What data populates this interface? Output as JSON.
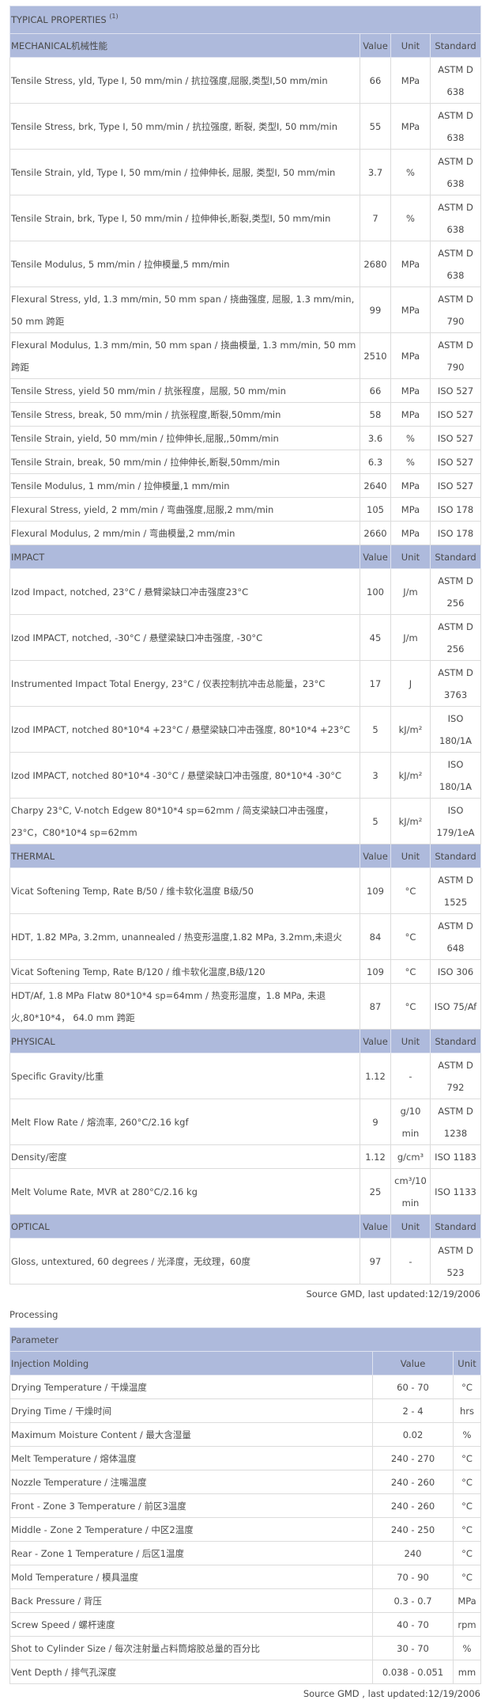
{
  "properties": {
    "title": "TYPICAL PROPERTIES",
    "title_note": "(1)",
    "columns": [
      "Value",
      "Unit",
      "Standard"
    ],
    "sections": [
      {
        "name": "MECHANICAL机械性能",
        "rows": [
          [
            "Tensile Stress, yld, Type I, 50 mm/min / 抗拉强度,屈服,类型I,50 mm/min",
            "66",
            "MPa",
            "ASTM D 638"
          ],
          [
            "Tensile Stress, brk, Type I, 50 mm/min / 抗拉强度, 断裂, 类型I, 50 mm/min",
            "55",
            "MPa",
            "ASTM D 638"
          ],
          [
            "Tensile Strain, yld, Type I, 50 mm/min / 拉伸伸长, 屈服, 类型I, 50 mm/min",
            "3.7",
            "%",
            "ASTM D 638"
          ],
          [
            "Tensile Strain, brk, Type I, 50 mm/min / 拉伸伸长,断裂,类型I, 50 mm/min",
            "7",
            "%",
            "ASTM D 638"
          ],
          [
            "Tensile Modulus, 5 mm/min / 拉伸模量,5 mm/min",
            "2680",
            "MPa",
            "ASTM D 638"
          ],
          [
            "Flexural Stress, yld, 1.3 mm/min, 50 mm span / 挠曲强度, 屈服, 1.3 mm/min, 50 mm 跨距",
            "99",
            "MPa",
            "ASTM D 790"
          ],
          [
            "Flexural Modulus, 1.3 mm/min, 50 mm span / 挠曲模量, 1.3 mm/min, 50 mm 跨距",
            "2510",
            "MPa",
            "ASTM D 790"
          ],
          [
            "Tensile Stress, yield 50 mm/min / 抗张程度，屈服, 50 mm/min",
            "66",
            "MPa",
            "ISO 527"
          ],
          [
            "Tensile Stress, break, 50 mm/min / 抗张程度,断裂,50mm/min",
            "58",
            "MPa",
            "ISO 527"
          ],
          [
            "Tensile Strain, yield, 50 mm/min / 拉伸伸长,屈服,,50mm/min",
            "3.6",
            "%",
            "ISO 527"
          ],
          [
            "Tensile Strain, break, 50 mm/min / 拉伸伸长,断裂,50mm/min",
            "6.3",
            "%",
            "ISO 527"
          ],
          [
            "Tensile Modulus, 1 mm/min / 拉伸模量,1 mm/min",
            "2640",
            "MPa",
            "ISO 527"
          ],
          [
            "Flexural Stress, yield, 2 mm/min / 弯曲强度,屈服,2 mm/min",
            "105",
            "MPa",
            "ISO 178"
          ],
          [
            "Flexural Modulus, 2 mm/min / 弯曲模量,2 mm/min",
            "2660",
            "MPa",
            "ISO 178"
          ]
        ]
      },
      {
        "name": "IMPACT",
        "rows": [
          [
            "Izod Impact, notched, 23°C / 悬臂梁缺口冲击强度23°C",
            "100",
            "J/m",
            "ASTM D 256"
          ],
          [
            "Izod IMPACT, notched, -30°C / 悬壁梁缺口冲击强度, -30°C",
            "45",
            "J/m",
            "ASTM D 256"
          ],
          [
            "Instrumented Impact Total Energy, 23°C / 仪表控制抗冲击总能量，23°C",
            "17",
            "J",
            "ASTM D 3763"
          ],
          [
            "Izod IMPACT, notched 80*10*4 +23°C / 悬壁梁缺口冲击强度, 80*10*4 +23°C",
            "5",
            "kJ/m²",
            "ISO 180/1A"
          ],
          [
            "Izod IMPACT, notched 80*10*4 -30°C / 悬壁梁缺口冲击强度, 80*10*4 -30°C",
            "3",
            "kJ/m²",
            "ISO 180/1A"
          ],
          [
            "Charpy 23°C, V-notch Edgew 80*10*4 sp=62mm / 简支梁缺口冲击强度，23°C，C80*10*4 sp=62mm",
            "5",
            "kJ/m²",
            "ISO 179/1eA"
          ]
        ]
      },
      {
        "name": "THERMAL",
        "rows": [
          [
            "Vicat Softening Temp, Rate B/50 / 维卡软化温度 B级/50",
            "109",
            "°C",
            "ASTM D 1525"
          ],
          [
            "HDT, 1.82 MPa, 3.2mm, unannealed / 热变形温度,1.82 MPa, 3.2mm,未退火",
            "84",
            "°C",
            "ASTM D 648"
          ],
          [
            "Vicat Softening Temp, Rate B/120 / 维卡软化温度,B级/120",
            "109",
            "°C",
            "ISO 306"
          ],
          [
            "HDT/Af, 1.8 MPa Flatw 80*10*4 sp=64mm / 热变形温度，1.8 MPa, 未退火,80*10*4， 64.0 mm 跨距",
            "87",
            "°C",
            "ISO 75/Af"
          ]
        ]
      },
      {
        "name": "PHYSICAL",
        "rows": [
          [
            "Specific Gravity/比重",
            "1.12",
            "-",
            "ASTM D 792"
          ],
          [
            "Melt Flow Rate / 熔流率, 260°C/2.16 kgf",
            "9",
            "g/10 min",
            "ASTM D 1238"
          ],
          [
            "Density/密度",
            "1.12",
            "g/cm³",
            "ISO 1183"
          ],
          [
            "Melt Volume Rate, MVR at 280°C/2.16 kg",
            "25",
            "cm³/10 min",
            "ISO 1133"
          ]
        ]
      },
      {
        "name": "OPTICAL",
        "rows": [
          [
            "Gloss, untextured, 60 degrees / 光泽度，无纹理，60度",
            "97",
            "-",
            "ASTM D 523"
          ]
        ]
      }
    ],
    "source": "Source GMD, last updated:12/19/2006"
  },
  "processing": {
    "label": "Processing",
    "header": "Parameter",
    "section": "Injection Molding",
    "columns": [
      "Value",
      "Unit"
    ],
    "rows": [
      [
        "Drying Temperature / 干燥温度",
        "60 - 70",
        "°C"
      ],
      [
        "Drying Time / 干燥时间",
        "2 - 4",
        "hrs"
      ],
      [
        "Maximum Moisture Content / 最大含湿量",
        "0.02",
        "%"
      ],
      [
        "Melt Temperature / 熔体温度",
        "240 - 270",
        "°C"
      ],
      [
        "Nozzle Temperature / 注嘴温度",
        "240 - 260",
        "°C"
      ],
      [
        "Front - Zone 3 Temperature / 前区3温度",
        "240 - 260",
        "°C"
      ],
      [
        "Middle - Zone 2 Temperature / 中区2温度",
        "240 - 250",
        "°C"
      ],
      [
        "Rear - Zone 1 Temperature / 后区1温度",
        "240",
        "°C"
      ],
      [
        "Mold Temperature / 模具温度",
        "70 - 90",
        "°C"
      ],
      [
        "Back Pressure / 背压",
        "0.3 - 0.7",
        "MPa"
      ],
      [
        "Screw Speed / 螺杆速度",
        "40 - 70",
        "rpm"
      ],
      [
        "Shot to Cylinder Size / 每次注射量占料筒熔胶总量的百分比",
        "30 - 70",
        "%"
      ],
      [
        "Vent Depth / 排气孔深度",
        "0.038 - 0.051",
        "mm"
      ]
    ],
    "source": "Source GMD , last updated:12/19/2006"
  },
  "colors": {
    "header_bg": "#aebadc",
    "text": "#4a4a4a",
    "border": "#333333"
  }
}
